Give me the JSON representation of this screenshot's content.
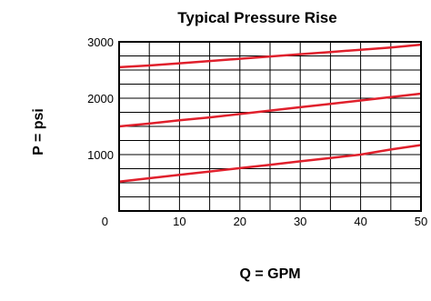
{
  "chart_data": {
    "type": "line",
    "title": "Typical Pressure Rise",
    "xlabel": "Q = GPM",
    "ylabel": "P = psi",
    "x_ticks": [
      "0",
      "10",
      "20",
      "30",
      "40",
      "50"
    ],
    "y_ticks": [
      "1000",
      "2000",
      "3000"
    ],
    "xlim": [
      0,
      50
    ],
    "ylim": [
      0,
      3000
    ],
    "grid": true,
    "x_grid_step": 5,
    "y_grid_step": 250,
    "series_color": "#e0202c",
    "series": [
      {
        "x": [
          0,
          5,
          10,
          15,
          20,
          25,
          30,
          35,
          40,
          45,
          50
        ],
        "values": [
          2550,
          2580,
          2620,
          2660,
          2700,
          2740,
          2780,
          2820,
          2860,
          2900,
          2950
        ]
      },
      {
        "x": [
          0,
          5,
          10,
          15,
          20,
          25,
          30,
          35,
          40,
          45,
          50
        ],
        "values": [
          1500,
          1550,
          1610,
          1660,
          1720,
          1780,
          1840,
          1900,
          1960,
          2020,
          2080
        ]
      },
      {
        "x": [
          0,
          5,
          10,
          15,
          20,
          25,
          30,
          35,
          40,
          45,
          50
        ],
        "values": [
          520,
          580,
          640,
          700,
          760,
          820,
          880,
          940,
          1000,
          1090,
          1170
        ]
      }
    ]
  }
}
